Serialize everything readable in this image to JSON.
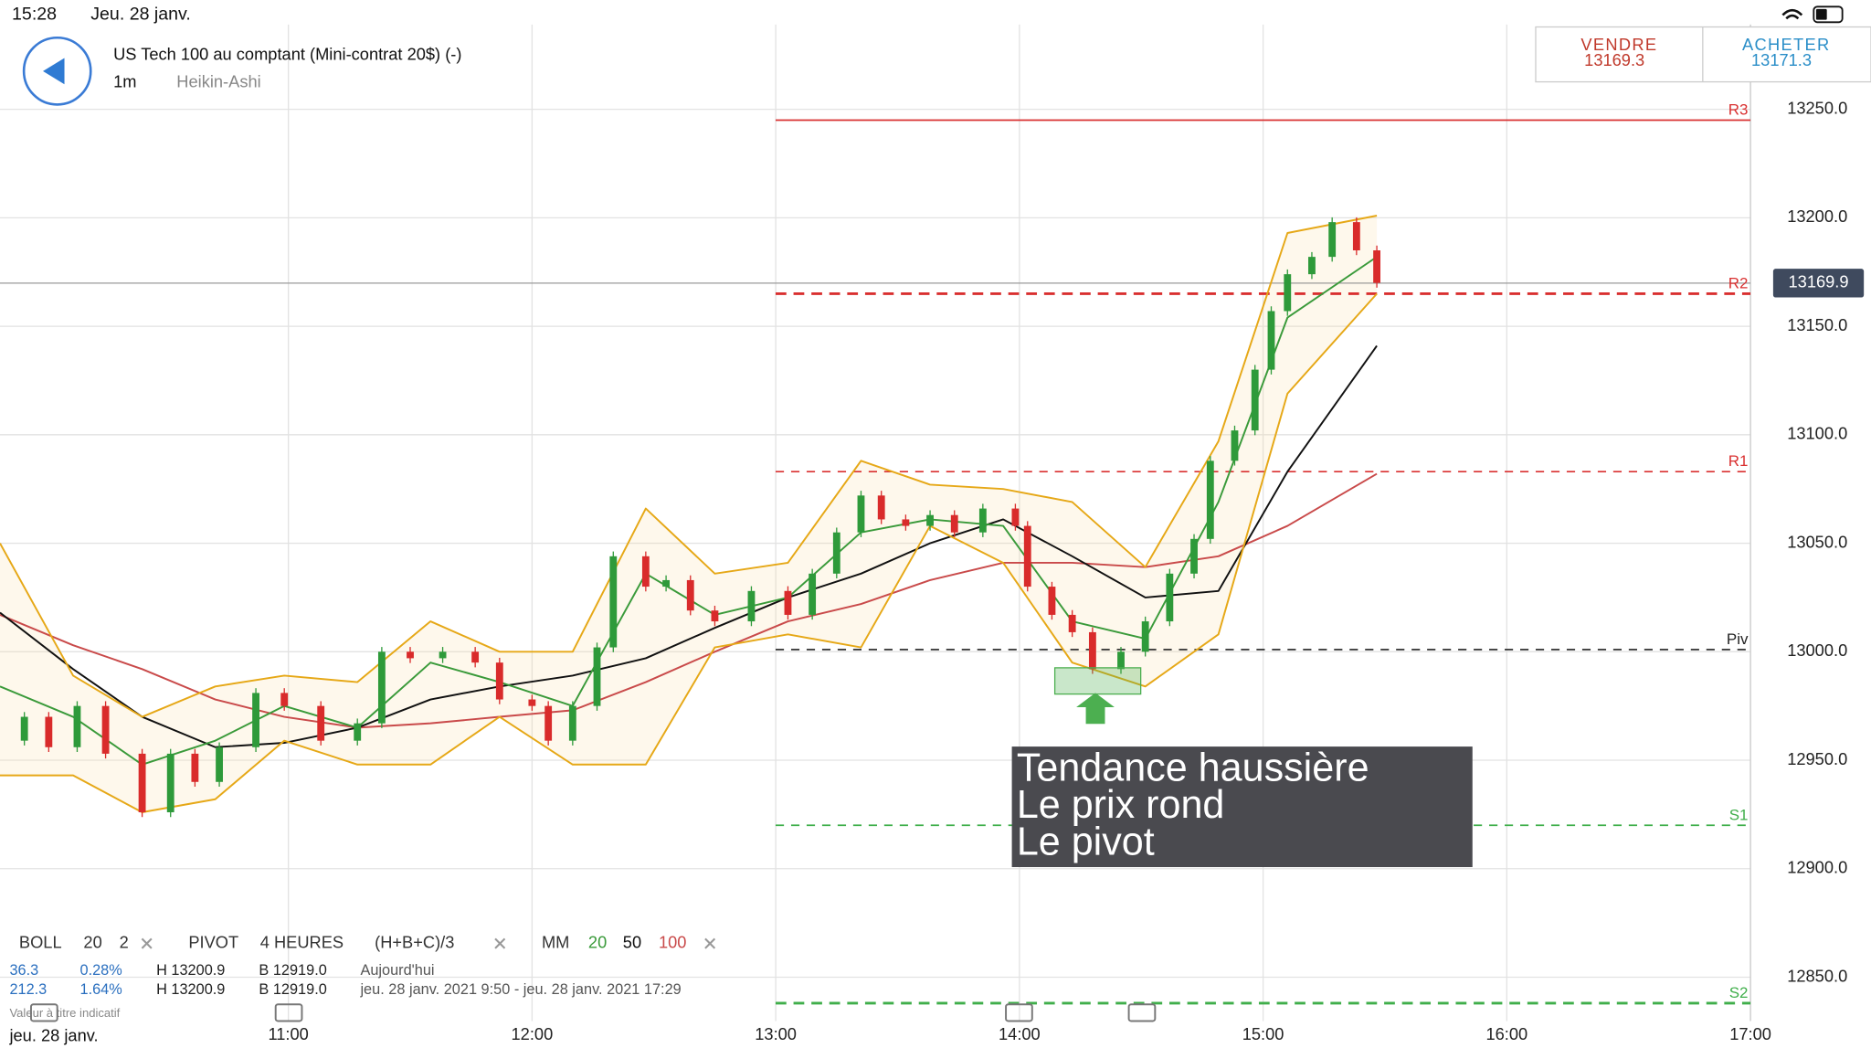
{
  "status_bar": {
    "time": "15:28",
    "date": "Jeu. 28 janv."
  },
  "header": {
    "instrument": "US Tech 100 au comptant (Mini-contrat 20$) (-)",
    "interval": "1m",
    "chart_style": "Heikin-Ashi"
  },
  "quote": {
    "sell_label": "VENDRE",
    "sell_price": "13169.3",
    "buy_label": "ACHETER",
    "buy_price": "13171.3"
  },
  "chart_data": {
    "type": "line",
    "x": [
      "09:49",
      "09:55",
      "10:01",
      "10:08",
      "10:15",
      "10:24",
      "10:31",
      "10:37",
      "10:43",
      "10:52",
      "10:59",
      "11:08",
      "11:17",
      "11:23",
      "11:30",
      "11:38",
      "11:46",
      "11:52",
      "12:00",
      "12:04",
      "12:10",
      "12:16",
      "12:20",
      "12:28",
      "12:33",
      "12:39",
      "12:45",
      "12:54",
      "13:03",
      "13:09",
      "13:15",
      "13:21",
      "13:26",
      "13:32",
      "13:38",
      "13:44",
      "13:51",
      "13:59",
      "14:02",
      "14:08",
      "14:13",
      "14:18",
      "14:25",
      "14:31",
      "14:37",
      "14:43",
      "14:47",
      "14:53",
      "14:58",
      "15:02",
      "15:06",
      "15:12",
      "15:17",
      "15:23",
      "15:28"
    ],
    "series": [
      {
        "color": "#2e9a3a",
        "down_color": "#d92b2b",
        "values": [
          12959,
          12970,
          12956,
          12975,
          12953,
          12926,
          12953,
          12940,
          12956,
          12981,
          12975,
          12959,
          12967,
          13000,
          12997,
          13000,
          12995,
          12978,
          12975,
          12959,
          12975,
          13002,
          13044,
          13030,
          13033,
          13019,
          13014,
          13028,
          13017,
          13036,
          13055,
          13072,
          13061,
          13058,
          13063,
          13055,
          13066,
          13058,
          13030,
          13017,
          13009,
          12992,
          13000,
          13014,
          13036,
          13052,
          13088,
          13102,
          13130,
          13157,
          13174,
          13182,
          13198,
          13185,
          13170
        ]
      }
    ],
    "indicator_x": [
      "09:49",
      "10:07",
      "10:24",
      "10:42",
      "10:59",
      "11:17",
      "11:35",
      "11:52",
      "12:10",
      "12:28",
      "12:45",
      "13:03",
      "13:21",
      "13:38",
      "13:56",
      "14:13",
      "14:31",
      "14:49",
      "15:06",
      "15:28"
    ],
    "indicator_series": [
      {
        "color": "#c94a4a",
        "values": [
          13017,
          13003,
          12992,
          12978,
          12970,
          12965,
          12967,
          12970,
          12973,
          12986,
          13000,
          13014,
          13022,
          13033,
          13041,
          13041,
          13039,
          13044,
          13058,
          13082
        ]
      },
      {
        "color": "#111111",
        "values": [
          13018,
          12992,
          12970,
          12956,
          12958,
          12965,
          12978,
          12984,
          12989,
          12997,
          13011,
          13025,
          13036,
          13050,
          13061,
          13044,
          13025,
          13028,
          13083,
          13141
        ]
      },
      {
        "color": "#3a9a3a",
        "values": [
          12984,
          12970,
          12948,
          12959,
          12975,
          12965,
          12995,
          12986,
          12975,
          13036,
          13017,
          13025,
          13055,
          13061,
          13058,
          13014,
          13006,
          13069,
          13154,
          13182
        ]
      },
      {
        "color": "#e6a817",
        "values": [
          13050,
          12989,
          12970,
          12984,
          12989,
          12986,
          13014,
          13000,
          13000,
          13066,
          13036,
          13041,
          13088,
          13077,
          13075,
          13069,
          13039,
          13097,
          13193,
          13201
        ]
      },
      {
        "color": "#e6a817",
        "values": [
          12943,
          12943,
          12926,
          12932,
          12959,
          12948,
          12948,
          12970,
          12948,
          12948,
          13002,
          13008,
          13002,
          13058,
          13041,
          12995,
          12984,
          13008,
          13119,
          13165
        ]
      }
    ],
    "pivots": [
      {
        "label": "R3",
        "value": 13245,
        "color": "#d93030",
        "dashed": false
      },
      {
        "label": "R2",
        "value": 13165,
        "color": "#d93030",
        "dashed": true
      },
      {
        "label": "R1",
        "value": 13083,
        "color": "#d93030",
        "dashed": true
      },
      {
        "label": "Piv",
        "value": 13001,
        "color": "#222222",
        "dashed": true
      },
      {
        "label": "S1",
        "value": 12920,
        "color": "#3fae4a",
        "dashed": true
      },
      {
        "label": "S2",
        "value": 12838,
        "color": "#3fae4a",
        "dashed": true
      }
    ],
    "current_price": 13169.9,
    "annotation": [
      "Tendance haussière",
      "Le prix rond",
      "Le pivot"
    ],
    "xlim": [
      "09:49",
      "17:00"
    ],
    "xticks": [
      "11:00",
      "12:00",
      "13:00",
      "14:00",
      "15:00",
      "16:00",
      "17:00"
    ],
    "ylim": [
      12830,
      13290
    ],
    "yticks": [
      {
        "value": 12850,
        "label": "12850.0"
      },
      {
        "value": 12900,
        "label": "12900.0"
      },
      {
        "value": 12950,
        "label": "12950.0"
      },
      {
        "value": 13000,
        "label": "13000.0"
      },
      {
        "value": 13050,
        "label": "13050.0"
      },
      {
        "value": 13100,
        "label": "13100.0"
      },
      {
        "value": 13150,
        "label": "13150.0"
      },
      {
        "value": 13200,
        "label": "13200.0"
      },
      {
        "value": 13250,
        "label": "13250.0"
      }
    ],
    "grid": true
  },
  "indicators_bar": {
    "boll": [
      "BOLL",
      "20",
      "2"
    ],
    "pivot": [
      "PIVOT",
      "4 HEURES",
      "(H+B+C)/3"
    ],
    "mm": [
      "MM",
      "20",
      "50",
      "100"
    ]
  },
  "stats": {
    "rows": [
      [
        "36.3",
        "0.28%",
        "H 13200.9",
        "B 12919.0",
        "Aujourd'hui"
      ],
      [
        "212.3",
        "1.64%",
        "H 13200.9",
        "B 12919.0",
        "jeu. 28 janv. 2021 9:50 - jeu. 28 janv. 2021 17:29"
      ]
    ],
    "note": "Valeur à titre indicatif"
  },
  "footer_date": "jeu. 28 janv."
}
